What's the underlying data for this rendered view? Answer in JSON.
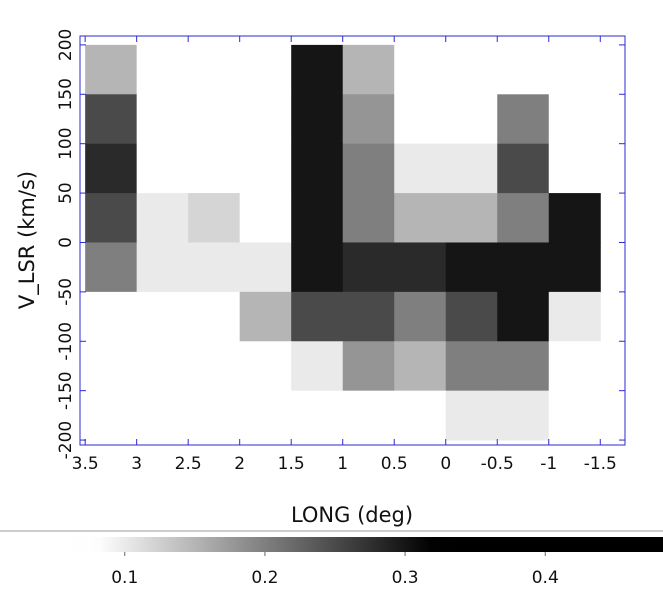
{
  "chart_data": {
    "type": "heatmap",
    "x_label": "LONG (deg)",
    "y_label": "V_LSR (km/s)",
    "x": [
      3.25,
      2.75,
      2.25,
      1.75,
      1.25,
      0.75,
      0.25,
      -0.25,
      -0.75,
      -1.25
    ],
    "y": [
      175,
      125,
      75,
      25,
      -25,
      -75,
      -125,
      -175
    ],
    "z": [
      [
        0.15,
        0.02,
        0.02,
        0.02,
        0.3,
        0.15,
        0.05,
        0.03,
        0.02,
        0.02
      ],
      [
        0.25,
        0.02,
        0.05,
        0.02,
        0.3,
        0.18,
        0.05,
        0.05,
        0.2,
        0.02
      ],
      [
        0.28,
        0.02,
        0.02,
        0.05,
        0.3,
        0.2,
        0.1,
        0.1,
        0.25,
        0.05
      ],
      [
        0.25,
        0.1,
        0.12,
        0.05,
        0.3,
        0.2,
        0.15,
        0.15,
        0.2,
        0.3
      ],
      [
        0.2,
        0.1,
        0.1,
        0.1,
        0.3,
        0.28,
        0.28,
        0.3,
        0.3,
        0.3
      ],
      [
        0.05,
        0.02,
        0.02,
        0.15,
        0.25,
        0.25,
        0.2,
        0.25,
        0.3,
        0.1
      ],
      [
        0.02,
        0.02,
        0.02,
        0.02,
        0.1,
        0.18,
        0.15,
        0.2,
        0.2,
        0.05
      ],
      [
        0.02,
        0.02,
        0.02,
        0.02,
        0.02,
        0.05,
        0.08,
        0.1,
        0.1,
        0.02
      ]
    ],
    "xlim": [
      3.55,
      -1.74
    ],
    "ylim": [
      -205,
      209
    ],
    "xticks": [
      3.5,
      3,
      2.5,
      2,
      1.5,
      1,
      0.5,
      0,
      -0.5,
      -1,
      -1.5
    ],
    "yticks": [
      200,
      150,
      100,
      50,
      0,
      -50,
      -100,
      -150,
      -200
    ],
    "colormap": "gray_r",
    "cmap_range": [
      0.08,
      0.32
    ],
    "frame_color": "#2a2ad0",
    "colorbar": {
      "clim": [
        0.011,
        0.484
      ],
      "ticks": [
        0.1,
        0.2,
        0.3,
        0.4
      ]
    }
  }
}
